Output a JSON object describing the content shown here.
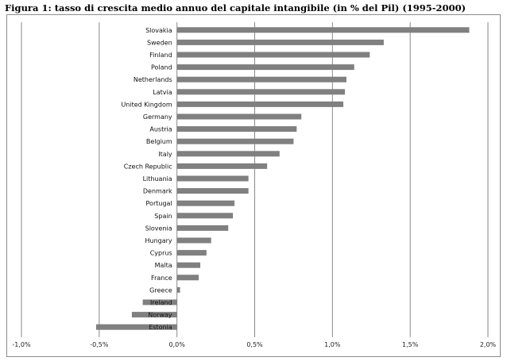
{
  "title": "Figura 1: tasso di crescita medio annuo del capitale intangibile (in % del Pil) (1995-2000)",
  "chart_data": {
    "type": "bar",
    "orientation": "horizontal",
    "categories": [
      "Slovakia",
      "Sweden",
      "Finland",
      "Poland",
      "Netherlands",
      "Latvia",
      "United Kingdom",
      "Germany",
      "Austria",
      "Belgium",
      "Italy",
      "Czech Republic",
      "Lithuania",
      "Denmark",
      "Portugal",
      "Spain",
      "Slovenia",
      "Hungary",
      "Cyprus",
      "Malta",
      "France",
      "Greece",
      "Ireland",
      "Norway",
      "Estonia"
    ],
    "values": [
      1.88,
      1.33,
      1.24,
      1.14,
      1.09,
      1.08,
      1.07,
      0.8,
      0.77,
      0.75,
      0.66,
      0.58,
      0.46,
      0.46,
      0.37,
      0.36,
      0.33,
      0.22,
      0.19,
      0.15,
      0.14,
      0.02,
      -0.22,
      -0.29,
      -0.52
    ],
    "xlim": [
      -1.0,
      2.0
    ],
    "xticks": [
      -1.0,
      -0.5,
      0.0,
      0.5,
      1.0,
      1.5,
      2.0
    ],
    "xtick_labels": [
      "-1,0%",
      "-0,5%",
      "0,0%",
      "0,5%",
      "1,0%",
      "1,5%",
      "2,0%"
    ],
    "grid": "vertical",
    "bar_color": "#808080"
  }
}
